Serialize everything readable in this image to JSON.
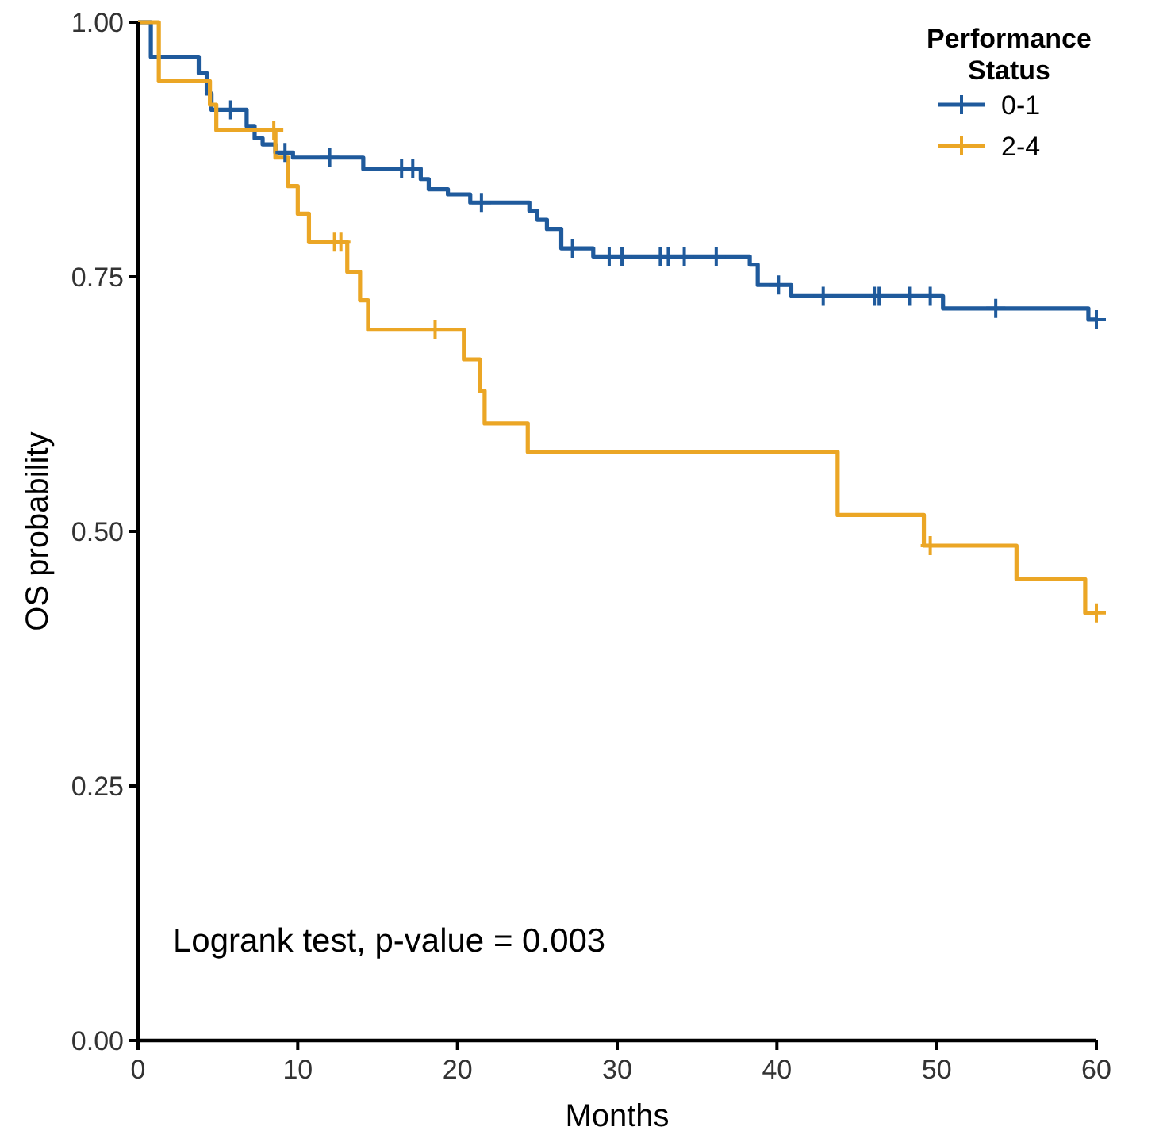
{
  "chart_data": {
    "type": "step",
    "xlabel": "Months",
    "ylabel": "OS probability",
    "legend_title": "Performance Status",
    "legend": "top right",
    "grid": false,
    "xlim": [
      0,
      60
    ],
    "ylim": [
      0,
      1
    ],
    "xticks": [
      0,
      10,
      20,
      30,
      40,
      50,
      60
    ],
    "yticks": [
      {
        "value": 0,
        "label": "0.00"
      },
      {
        "value": 0.25,
        "label": "0.25"
      },
      {
        "value": 0.5,
        "label": "0.50"
      },
      {
        "value": 0.75,
        "label": "0.75"
      },
      {
        "value": 1,
        "label": "1.00"
      }
    ],
    "annotations": [
      "Logrank test, p-value = 0.003"
    ],
    "line_style": "solid",
    "series": [
      {
        "name": "0-1",
        "color": "#1f5a9c",
        "marker": "none",
        "x": [
          0,
          0.8,
          3.8,
          4.3,
          4.6,
          6.8,
          7.3,
          7.8,
          8.6,
          9.7,
          14.1,
          17.7,
          18.2,
          19.4,
          20.8,
          24.5,
          25,
          25.6,
          26.5,
          28.5,
          38.3,
          38.8,
          40.9,
          50.4,
          59.5,
          60
        ],
        "values": [
          1,
          0.966,
          0.95,
          0.93,
          0.914,
          0.898,
          0.886,
          0.88,
          0.872,
          0.867,
          0.856,
          0.846,
          0.836,
          0.831,
          0.823,
          0.815,
          0.806,
          0.797,
          0.778,
          0.77,
          0.762,
          0.742,
          0.731,
          0.719,
          0.708,
          0.708
        ]
      },
      {
        "name": "2-4",
        "color": "#eba625",
        "marker": "none",
        "x": [
          0,
          1.3,
          4.5,
          4.9,
          8.6,
          9.4,
          10,
          10.7,
          13.1,
          13.9,
          14.4,
          20.4,
          21.4,
          21.7,
          24.4,
          43.8,
          49.2,
          55,
          59.3,
          60
        ],
        "values": [
          1,
          0.942,
          0.919,
          0.894,
          0.867,
          0.839,
          0.812,
          0.784,
          0.755,
          0.727,
          0.698,
          0.669,
          0.638,
          0.606,
          0.578,
          0.516,
          0.486,
          0.453,
          0.42,
          0.42
        ]
      },
      {
        "color": "#1f5a9c",
        "type": "scatter",
        "marker": "cross",
        "x": [
          5.8,
          9.2,
          12,
          16.5,
          17.2,
          21.5,
          27.2,
          29.5,
          30.3,
          32.7,
          33.2,
          34.2,
          36.2,
          40.1,
          42.9,
          46.1,
          46.4,
          48.3,
          49.6,
          53.7,
          60
        ],
        "values": [
          0.914,
          0.872,
          0.867,
          0.856,
          0.856,
          0.823,
          0.778,
          0.77,
          0.77,
          0.77,
          0.77,
          0.77,
          0.77,
          0.742,
          0.731,
          0.731,
          0.731,
          0.731,
          0.731,
          0.719,
          0.708
        ]
      },
      {
        "color": "#eba625",
        "type": "scatter",
        "marker": "cross",
        "x": [
          8.5,
          12.3,
          12.7,
          18.6,
          49.6,
          60
        ],
        "values": [
          0.894,
          0.784,
          0.784,
          0.698,
          0.486,
          0.42
        ]
      }
    ]
  }
}
